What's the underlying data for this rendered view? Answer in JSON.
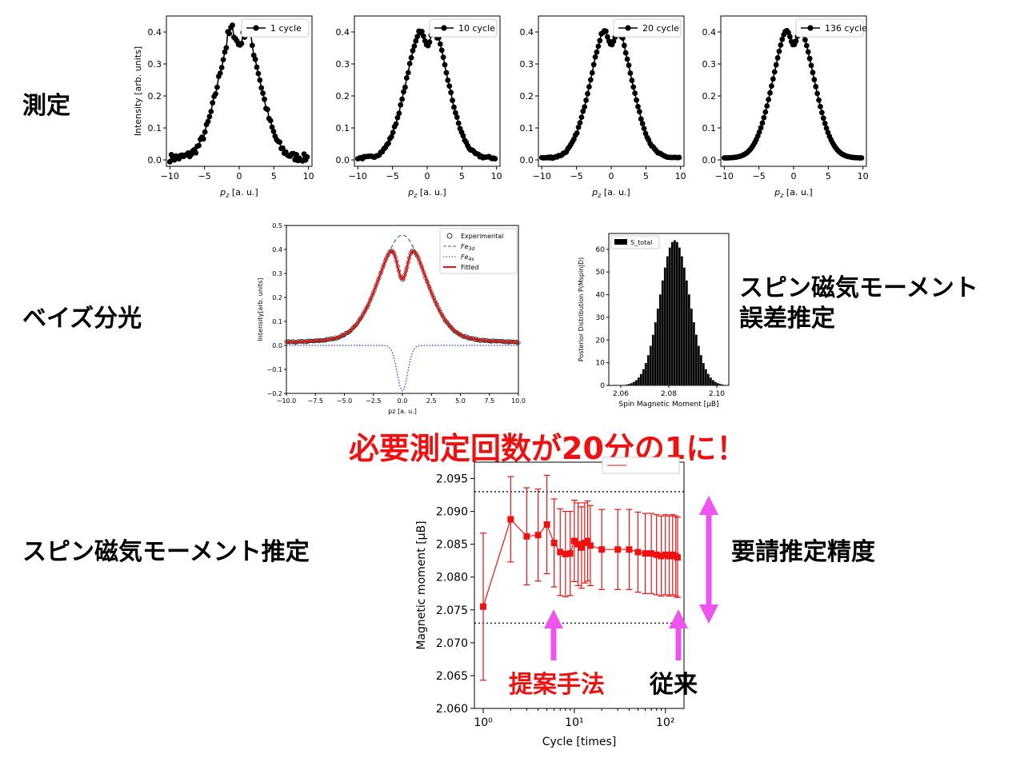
{
  "labels": {
    "measure": "測定",
    "bayes": "ベイズ分光",
    "spin_error_line1": "スピン磁気モーメント",
    "spin_error_line2": "誤差推定",
    "spin_estimate": "スピン磁気モーメント推定",
    "required_precision": "要請推定精度",
    "banner": "必要測定回数が20分の1に！",
    "proposed": "提案手法",
    "conventional": "従来"
  },
  "colors": {
    "red": "#ee1111",
    "magenta_arrow": "#ee55ee",
    "marker": "#000000",
    "fe3d": "#2e8b2e",
    "fe4s": "#1f2fff"
  },
  "chart_data": [
    {
      "type": "scatter",
      "title": "",
      "legend": "1 cycle",
      "legend_position": "top-right",
      "xlabel": "p_z [a. u.]",
      "ylabel": "Intensity [arb. units]",
      "xlim": [
        -10.5,
        10.5
      ],
      "ylim": [
        -0.02,
        0.45
      ],
      "xticks": [
        "−10",
        "−5",
        "0",
        "5",
        "10"
      ],
      "yticks": [
        "0.0",
        "0.1",
        "0.2",
        "0.3",
        "0.4"
      ],
      "noise": 0.012,
      "peak_pos": 1.3,
      "peak_width": 2.3,
      "peak_amp": 0.26,
      "dip_amp": 0.18,
      "dip_width": 0.55
    },
    {
      "type": "scatter",
      "title": "",
      "legend": "10 cycle",
      "legend_position": "top-right",
      "xlabel": "p_z [a. u.]",
      "ylabel": "",
      "xlim": [
        -10.5,
        10.5
      ],
      "ylim": [
        -0.02,
        0.45
      ],
      "xticks": [
        "−10",
        "−5",
        "0",
        "5",
        "10"
      ],
      "yticks": [
        "0.0",
        "0.1",
        "0.2",
        "0.3",
        "0.4"
      ],
      "noise": 0.004,
      "peak_pos": 1.3,
      "peak_width": 2.3,
      "peak_amp": 0.26,
      "dip_amp": 0.18,
      "dip_width": 0.55
    },
    {
      "type": "scatter",
      "title": "",
      "legend": "20 cycle",
      "legend_position": "top-right",
      "xlabel": "p_z [a. u.]",
      "ylabel": "",
      "xlim": [
        -10.5,
        10.5
      ],
      "ylim": [
        -0.02,
        0.45
      ],
      "xticks": [
        "−10",
        "−5",
        "0",
        "5",
        "10"
      ],
      "yticks": [
        "0.0",
        "0.1",
        "0.2",
        "0.3",
        "0.4"
      ],
      "noise": 0.003,
      "peak_pos": 1.3,
      "peak_width": 2.3,
      "peak_amp": 0.26,
      "dip_amp": 0.18,
      "dip_width": 0.55
    },
    {
      "type": "scatter",
      "title": "",
      "legend": "136 cycle",
      "legend_position": "top-right",
      "xlabel": "p_z [a. u.]",
      "ylabel": "",
      "xlim": [
        -10.5,
        10.5
      ],
      "ylim": [
        -0.02,
        0.45
      ],
      "xticks": [
        "−10",
        "−5",
        "0",
        "5",
        "10"
      ],
      "yticks": [
        "0.0",
        "0.1",
        "0.2",
        "0.3",
        "0.4"
      ],
      "noise": 0.0,
      "peak_pos": 1.3,
      "peak_width": 2.3,
      "peak_amp": 0.26,
      "dip_amp": 0.18,
      "dip_width": 0.55
    },
    {
      "type": "line",
      "title": "",
      "xlabel": "p_z [a. u.]",
      "ylabel": "Intensity[arb. units]",
      "xlim": [
        -10,
        10
      ],
      "ylim": [
        -0.2,
        0.5
      ],
      "xticks": [
        "−10.0",
        "−7.5",
        "−5.0",
        "−2.5",
        "0.0",
        "2.5",
        "5.0",
        "7.5",
        "10.0"
      ],
      "yticks": [
        "−0.2",
        "−0.1",
        "0.0",
        "0.1",
        "0.2",
        "0.3",
        "0.4",
        "0.5"
      ],
      "legend_position": "top-right",
      "series": [
        {
          "name": "Experimental",
          "style": "open-circles"
        },
        {
          "name": "Fe_3d",
          "style": "dashed",
          "amp": 0.46,
          "width": 2.0
        },
        {
          "name": "Fe_4s",
          "style": "dotted",
          "amp": -0.19,
          "width": 0.45
        },
        {
          "name": "Fitted",
          "style": "solid"
        }
      ]
    },
    {
      "type": "bar",
      "title": "",
      "xlabel": "Spin Magnetic Moment [μ_B]",
      "ylabel": "Posterior Distribution P(M_spin|D)",
      "xlim": [
        2.055,
        2.105
      ],
      "ylim": [
        0,
        0.067
      ],
      "xticks": [
        "2.06",
        "2.08",
        "2.10"
      ],
      "yticks": [
        "0",
        "10",
        "20",
        "30",
        "40",
        "50",
        "60"
      ],
      "legend": "S_total",
      "legend_position": "top-left",
      "mean": 2.0825,
      "sd": 0.0062,
      "peak": 64,
      "bin_width": 0.001
    },
    {
      "type": "scatter",
      "title": "",
      "xlabel": "Cycle [times]",
      "ylabel": "Magnetic moment [μ_B]",
      "x_scale": "log",
      "xlim": [
        0.8,
        160
      ],
      "ylim": [
        2.06,
        2.0975
      ],
      "xticks": [
        "10⁰",
        "10¹",
        "10²"
      ],
      "yticks": [
        "2.060",
        "2.065",
        "2.070",
        "2.075",
        "2.080",
        "2.085",
        "2.090",
        "2.095"
      ],
      "reference_lines": [
        2.093,
        2.073
      ],
      "x": [
        1,
        2,
        3,
        4,
        5,
        6,
        7,
        8,
        9,
        10,
        11,
        12,
        13,
        14,
        15,
        20,
        30,
        40,
        50,
        60,
        70,
        80,
        90,
        100,
        110,
        120,
        130,
        136
      ],
      "y": [
        2.0755,
        2.0888,
        2.0862,
        2.0864,
        2.088,
        2.0852,
        2.0838,
        2.0835,
        2.0836,
        2.0855,
        2.085,
        2.0845,
        2.0852,
        2.0855,
        2.0848,
        2.0842,
        2.0842,
        2.0842,
        2.0838,
        2.0836,
        2.0836,
        2.0834,
        2.0832,
        2.0834,
        2.0832,
        2.0834,
        2.0832,
        2.083
      ],
      "err": [
        0.0112,
        0.0065,
        0.0074,
        0.007,
        0.0075,
        0.0067,
        0.0066,
        0.0065,
        0.0064,
        0.0062,
        0.0063,
        0.0062,
        0.0061,
        0.0061,
        0.0061,
        0.0061,
        0.0061,
        0.0061,
        0.0061,
        0.0061,
        0.0061,
        0.0061,
        0.0061,
        0.0061,
        0.0061,
        0.0061,
        0.0061,
        0.0061
      ]
    }
  ]
}
